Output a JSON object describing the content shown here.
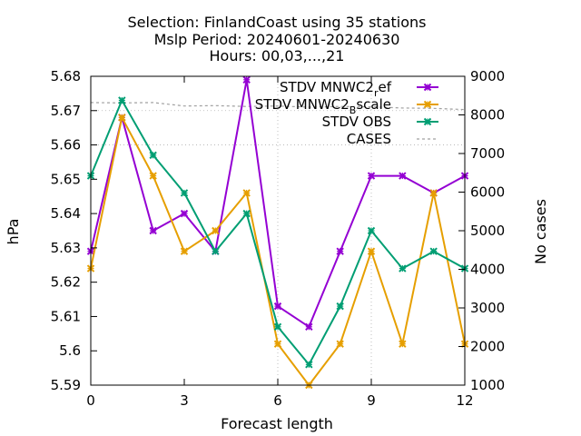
{
  "chart_data": {
    "type": "line",
    "title_lines": [
      "Selection: FinlandCoast using    35 stations",
      "Mslp   Period: 20240601-20240630",
      "Hours: 00,03,...,21"
    ],
    "xlabel": "Forecast length",
    "ylabel": "hPa",
    "y2label": "No cases",
    "xlim": [
      0,
      12
    ],
    "ylim": [
      5.59,
      5.68
    ],
    "y2lim": [
      1000,
      9000
    ],
    "xticks": [
      "0",
      "3",
      "6",
      "9",
      "12"
    ],
    "xtick_values": [
      0,
      3,
      6,
      9,
      12
    ],
    "yticks": [
      "5.59",
      "5.6",
      "5.61",
      "5.62",
      "5.63",
      "5.64",
      "5.65",
      "5.66",
      "5.67",
      "5.68"
    ],
    "ytick_values": [
      5.59,
      5.6,
      5.61,
      5.62,
      5.63,
      5.64,
      5.65,
      5.66,
      5.67,
      5.68
    ],
    "y2ticks": [
      "1000",
      "2000",
      "3000",
      "4000",
      "5000",
      "6000",
      "7000",
      "8000",
      "9000"
    ],
    "y2tick_values": [
      1000,
      2000,
      3000,
      4000,
      5000,
      6000,
      7000,
      8000,
      9000
    ],
    "grid": {
      "x": [
        6,
        9
      ],
      "y": [
        5.66,
        5.67
      ]
    },
    "legend_position": "top-right",
    "x": [
      0,
      1,
      2,
      3,
      4,
      5,
      6,
      7,
      8,
      9,
      10,
      11,
      12
    ],
    "series": [
      {
        "name": "STDV MNWC2_ref",
        "legend_main": "STDV MNWC2",
        "legend_sub": "r",
        "legend_tail": "ef",
        "sub_style": "subscript",
        "color": "#9400d3",
        "axis": "y",
        "marker": "x",
        "values": [
          5.629,
          5.668,
          5.635,
          5.64,
          5.629,
          5.679,
          5.613,
          5.607,
          5.629,
          5.651,
          5.651,
          5.646,
          5.651
        ]
      },
      {
        "name": "STDV MNWC2_Bscale",
        "legend_main": "STDV MNWC2",
        "legend_sub": "B",
        "legend_tail": "scale",
        "sub_style": "subscript",
        "color": "#e69f00",
        "axis": "y",
        "marker": "x",
        "values": [
          5.624,
          5.668,
          5.651,
          5.629,
          5.635,
          5.646,
          5.602,
          5.59,
          5.602,
          5.629,
          5.602,
          5.646,
          5.602
        ]
      },
      {
        "name": "STDV OBS",
        "legend_main": "STDV OBS",
        "legend_sub": "",
        "legend_tail": "",
        "color": "#009e73",
        "axis": "y",
        "marker": "x",
        "values": [
          5.651,
          5.673,
          5.657,
          5.646,
          5.629,
          5.64,
          5.607,
          5.596,
          5.613,
          5.635,
          5.624,
          5.629,
          5.624
        ]
      },
      {
        "name": "CASES",
        "legend_main": "CASES",
        "legend_sub": "",
        "legend_tail": "",
        "color": "#a0a0a0",
        "axis": "y2",
        "dashed": true,
        "values": [
          8320,
          8310,
          8320,
          8230,
          8240,
          8220,
          8230,
          8200,
          8220,
          8210,
          8180,
          8170,
          8140
        ]
      }
    ]
  }
}
